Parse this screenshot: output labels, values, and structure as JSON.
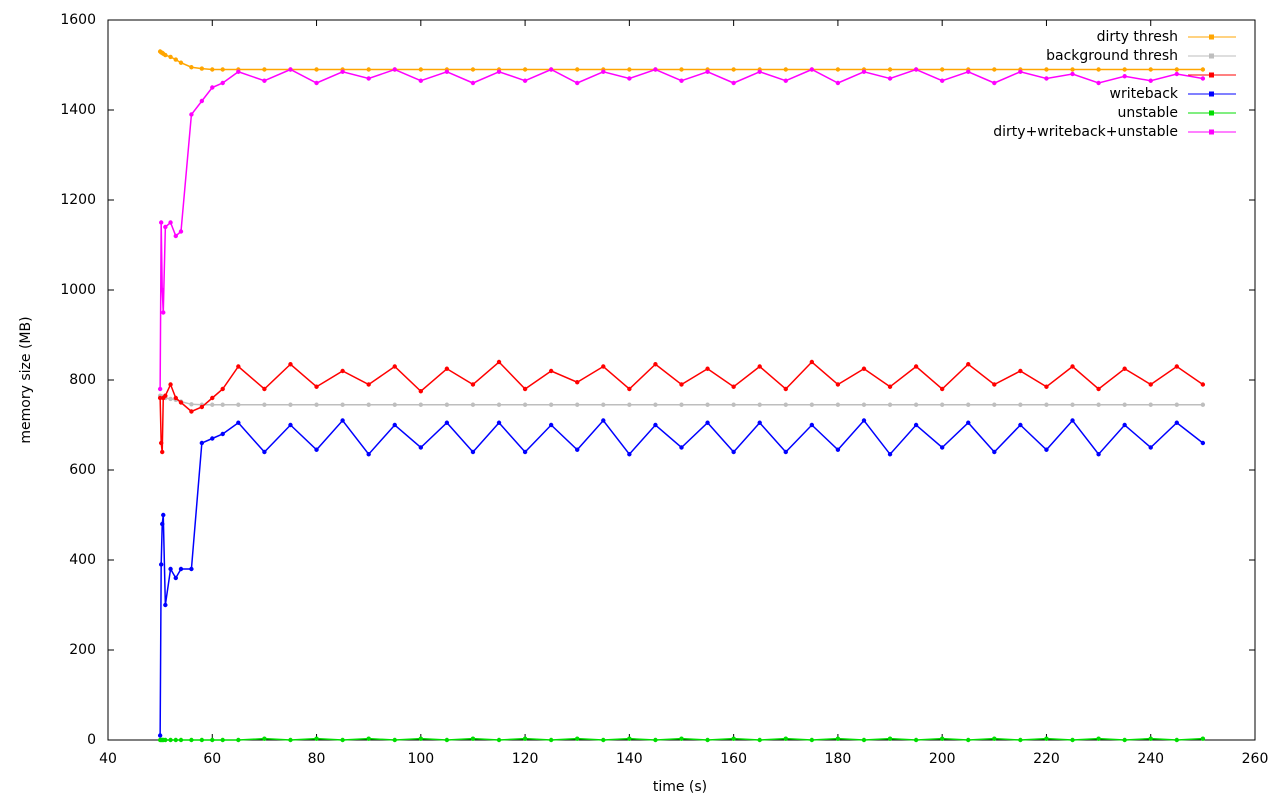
{
  "chart_data": {
    "type": "line",
    "xlabel": "time (s)",
    "ylabel": "memory size (MB)",
    "x": [
      50,
      50.2,
      50.4,
      50.6,
      51,
      52,
      53,
      54,
      56,
      58,
      60,
      62,
      65,
      70,
      75,
      80,
      85,
      90,
      95,
      100,
      105,
      110,
      115,
      120,
      125,
      130,
      135,
      140,
      145,
      150,
      155,
      160,
      165,
      170,
      175,
      180,
      185,
      190,
      195,
      200,
      205,
      210,
      215,
      220,
      225,
      230,
      235,
      240,
      245,
      250
    ],
    "xlim": [
      40,
      260
    ],
    "xticks": [
      40,
      60,
      80,
      100,
      120,
      140,
      160,
      180,
      200,
      220,
      240,
      260
    ],
    "ylim": [
      0,
      1600
    ],
    "yticks": [
      0,
      200,
      400,
      600,
      800,
      1000,
      1200,
      1400,
      1600
    ],
    "legend": "upper right",
    "series": [
      {
        "name": "dirty thresh",
        "color": "#ffa500",
        "values": [
          1530,
          1528,
          1527,
          1525,
          1522,
          1518,
          1512,
          1505,
          1495,
          1492,
          1490,
          1490,
          1490,
          1490,
          1490,
          1490,
          1490,
          1490,
          1490,
          1490,
          1490,
          1490,
          1490,
          1490,
          1490,
          1490,
          1490,
          1490,
          1490,
          1490,
          1490,
          1490,
          1490,
          1490,
          1490,
          1490,
          1490,
          1490,
          1490,
          1490,
          1490,
          1490,
          1490,
          1490,
          1490,
          1490,
          1490,
          1490,
          1490,
          1490
        ]
      },
      {
        "name": "background thresh",
        "color": "#bebebe",
        "values": [
          765,
          764,
          763,
          762,
          760,
          758,
          756,
          752,
          746,
          745,
          745,
          745,
          745,
          745,
          745,
          745,
          745,
          745,
          745,
          745,
          745,
          745,
          745,
          745,
          745,
          745,
          745,
          745,
          745,
          745,
          745,
          745,
          745,
          745,
          745,
          745,
          745,
          745,
          745,
          745,
          745,
          745,
          745,
          745,
          745,
          745,
          745,
          745,
          745,
          745
        ]
      },
      {
        "color": "#ff0000",
        "values": [
          760,
          660,
          640,
          760,
          765,
          790,
          760,
          750,
          730,
          740,
          760,
          780,
          830,
          780,
          835,
          785,
          820,
          790,
          830,
          775,
          825,
          790,
          840,
          780,
          820,
          795,
          830,
          780,
          835,
          790,
          825,
          785,
          830,
          780,
          840,
          790,
          825,
          785,
          830,
          780,
          835,
          790,
          820,
          785,
          830,
          780,
          825,
          790,
          830,
          790
        ]
      },
      {
        "name": "writeback",
        "color": "#0000ff",
        "values": [
          10,
          390,
          480,
          500,
          300,
          380,
          360,
          380,
          380,
          660,
          670,
          680,
          705,
          640,
          700,
          645,
          710,
          635,
          700,
          650,
          705,
          640,
          705,
          640,
          700,
          645,
          710,
          635,
          700,
          650,
          705,
          640,
          705,
          640,
          700,
          645,
          710,
          635,
          700,
          650,
          705,
          640,
          700,
          645,
          710,
          635,
          700,
          650,
          705,
          660
        ]
      },
      {
        "name": "unstable",
        "color": "#00dd00",
        "values": [
          0,
          0,
          0,
          0,
          0,
          0,
          0,
          0,
          0,
          0,
          0,
          0,
          0,
          3,
          0,
          3,
          0,
          3,
          0,
          3,
          0,
          3,
          0,
          3,
          0,
          3,
          0,
          3,
          0,
          3,
          0,
          3,
          0,
          3,
          0,
          3,
          0,
          3,
          0,
          3,
          0,
          3,
          0,
          3,
          0,
          3,
          0,
          3,
          0,
          3
        ]
      },
      {
        "name": "dirty+writeback+unstable",
        "color": "#ff00ff",
        "values": [
          780,
          1150,
          1000,
          950,
          1140,
          1150,
          1120,
          1130,
          1390,
          1420,
          1450,
          1460,
          1485,
          1465,
          1490,
          1460,
          1485,
          1470,
          1490,
          1465,
          1485,
          1460,
          1485,
          1465,
          1490,
          1460,
          1485,
          1470,
          1490,
          1465,
          1485,
          1460,
          1485,
          1465,
          1490,
          1460,
          1485,
          1470,
          1490,
          1465,
          1485,
          1460,
          1485,
          1470,
          1480,
          1460,
          1475,
          1465,
          1480,
          1470
        ]
      }
    ]
  }
}
